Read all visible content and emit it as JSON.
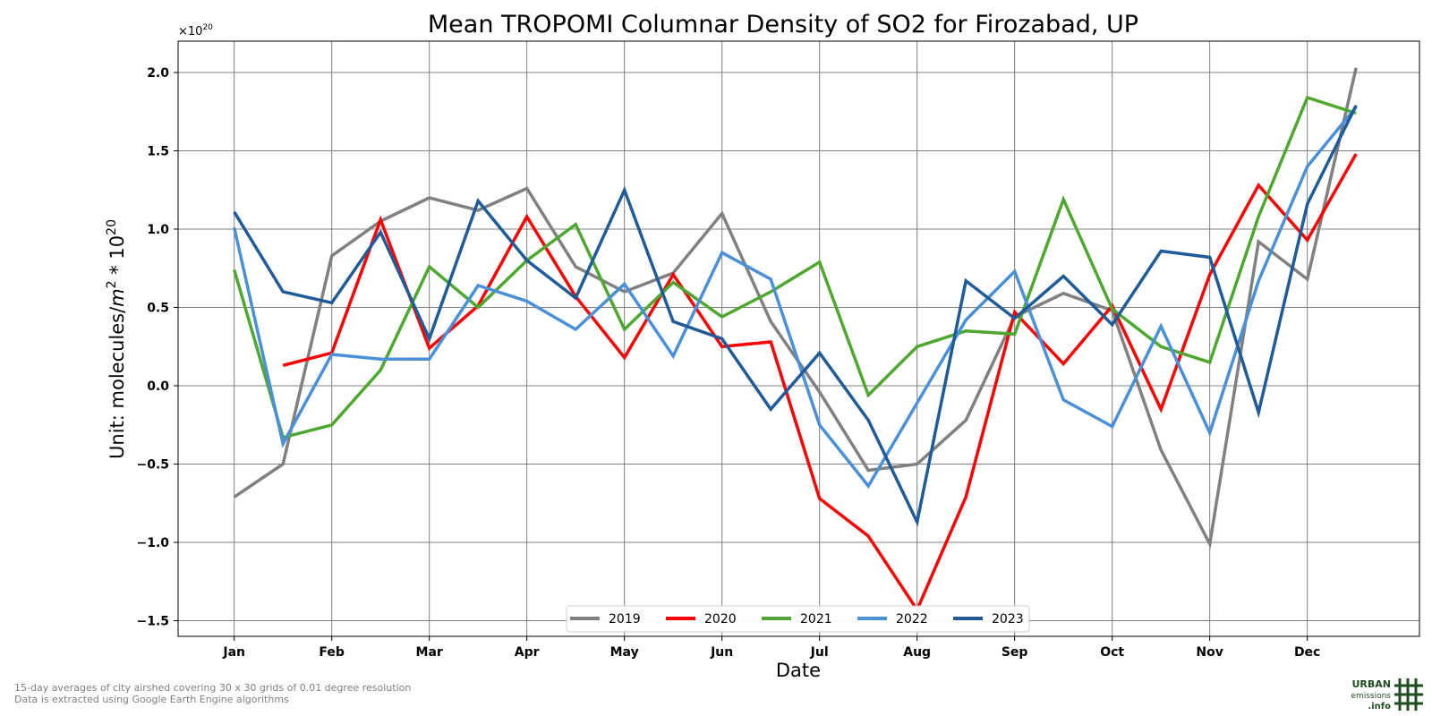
{
  "chart_data": {
    "type": "line",
    "title": "Mean TROPOMI Columnar Density of SO2 for Firozabad, UP",
    "xlabel": "Date",
    "ylabel": "Unit: molecules/m² * 10²⁰",
    "ylabel_parts": {
      "prefix": "Unit: molecules/",
      "m": "m",
      "m_sup": "2",
      "mid": " * 10",
      "sup": "20"
    },
    "y_exponent": {
      "base": "×10",
      "power": "20"
    },
    "ylim": [
      -1.6,
      2.2
    ],
    "y_ticks": [
      -1.5,
      -1.0,
      -0.5,
      0.0,
      0.5,
      1.0,
      1.5,
      2.0
    ],
    "y_tick_labels": [
      "−1.5",
      "−1.0",
      "−0.5",
      "0.0",
      "0.5",
      "1.0",
      "1.5",
      "2.0"
    ],
    "x_ticks": [
      0,
      2,
      4,
      6,
      8,
      10,
      12,
      14,
      16,
      18,
      20,
      22
    ],
    "x_tick_labels": [
      "Jan",
      "Feb",
      "Mar",
      "Apr",
      "May",
      "Jun",
      "Jul",
      "Aug",
      "Sep",
      "Oct",
      "Nov",
      "Dec"
    ],
    "xlim": [
      -1.15,
      24.3
    ],
    "grid": true,
    "legend_position": "bottom-center",
    "x": [
      0,
      1,
      2,
      3,
      4,
      5,
      6,
      7,
      8,
      9,
      10,
      11,
      12,
      13,
      14,
      15,
      16,
      17,
      18,
      19,
      20,
      21,
      22,
      23
    ],
    "series": [
      {
        "name": "2019",
        "color": "#808080",
        "values": [
          -0.71,
          -0.5,
          0.83,
          1.05,
          1.2,
          1.12,
          1.26,
          0.76,
          0.6,
          0.72,
          1.1,
          0.41,
          -0.04,
          -0.54,
          -0.5,
          -0.22,
          0.44,
          0.59,
          0.48,
          -0.41,
          -1.01,
          0.92,
          0.68,
          2.03
        ]
      },
      {
        "name": "2020",
        "color": "#ff0000",
        "values": [
          null,
          0.13,
          0.21,
          1.06,
          0.24,
          0.51,
          1.08,
          0.57,
          0.18,
          0.71,
          0.25,
          0.28,
          -0.72,
          -0.96,
          -1.43,
          -0.71,
          0.47,
          0.14,
          0.51,
          -0.15,
          0.71,
          1.28,
          0.93,
          1.48
        ]
      },
      {
        "name": "2021",
        "color": "#4ea72e",
        "values": [
          0.74,
          -0.33,
          -0.25,
          0.1,
          0.76,
          0.5,
          0.8,
          1.03,
          0.36,
          0.66,
          0.44,
          0.6,
          0.79,
          -0.06,
          0.25,
          0.35,
          0.33,
          1.19,
          0.49,
          0.25,
          0.15,
          1.08,
          1.84,
          1.74
        ]
      },
      {
        "name": "2022",
        "color": "#4a90d9",
        "values": [
          1.01,
          -0.37,
          0.2,
          0.17,
          0.17,
          0.64,
          0.54,
          0.36,
          0.65,
          0.19,
          0.85,
          0.68,
          -0.25,
          -0.64,
          -0.11,
          0.42,
          0.73,
          -0.09,
          -0.26,
          0.38,
          -0.3,
          0.67,
          1.4,
          1.78
        ]
      },
      {
        "name": "2023",
        "color": "#1f5b99",
        "values": [
          1.11,
          0.6,
          0.53,
          0.98,
          0.3,
          1.18,
          0.8,
          0.56,
          1.25,
          0.41,
          0.3,
          -0.15,
          0.21,
          -0.22,
          -0.87,
          0.67,
          0.43,
          0.7,
          0.39,
          0.86,
          0.82,
          -0.17,
          1.16,
          1.79
        ]
      }
    ]
  },
  "footnote": {
    "line1": "15-day averages of city airshed covering 30 x 30 grids of 0.01 degree resolution",
    "line2": "Data is extracted using Google Earth Engine algorithms"
  },
  "logo": {
    "line1": "URBAN",
    "line2": "emissions",
    "line3": ".info",
    "color": "#1f4d1f"
  }
}
